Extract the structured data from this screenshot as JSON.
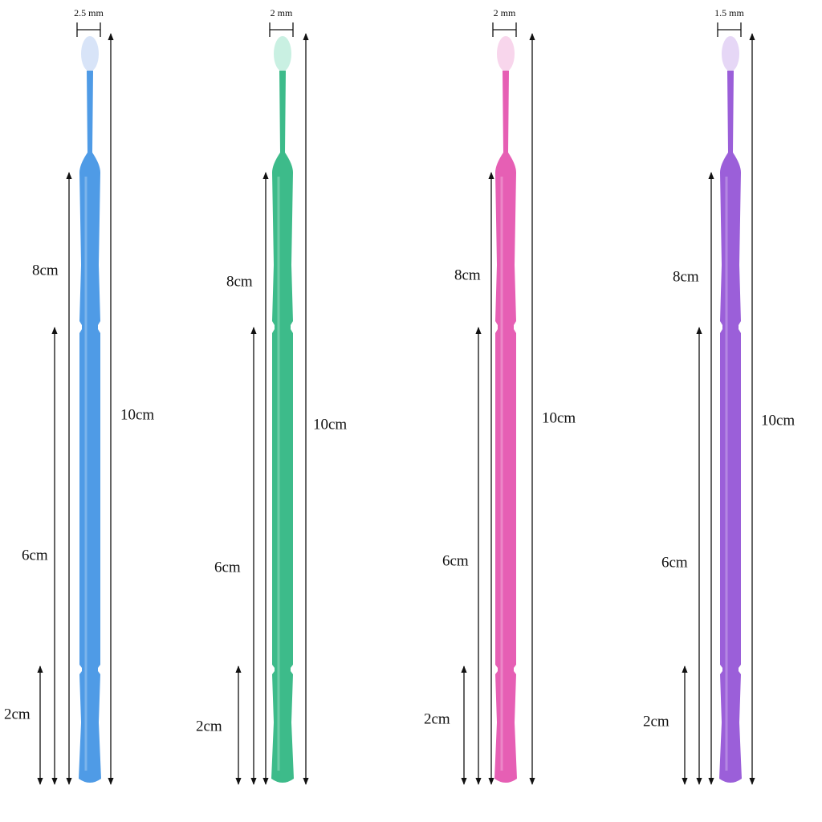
{
  "items": [
    {
      "tip": "2.5 mm",
      "color": "#4f9be6",
      "tip_color": "#d8e4f8",
      "lengths": [
        "8cm",
        "10cm",
        "6cm",
        "2cm"
      ]
    },
    {
      "tip": "2 mm",
      "color": "#3dbb8a",
      "tip_color": "#c9f0e2",
      "lengths": [
        "8cm",
        "10cm",
        "6cm",
        "2cm"
      ]
    },
    {
      "tip": "2 mm",
      "color": "#e65fb4",
      "tip_color": "#f8d6ec",
      "lengths": [
        "8cm",
        "10cm",
        "6cm",
        "2cm"
      ]
    },
    {
      "tip": "1.5 mm",
      "color": "#9b5fd9",
      "tip_color": "#e6d7f6",
      "lengths": [
        "8cm",
        "10cm",
        "6cm",
        "2cm"
      ]
    }
  ]
}
